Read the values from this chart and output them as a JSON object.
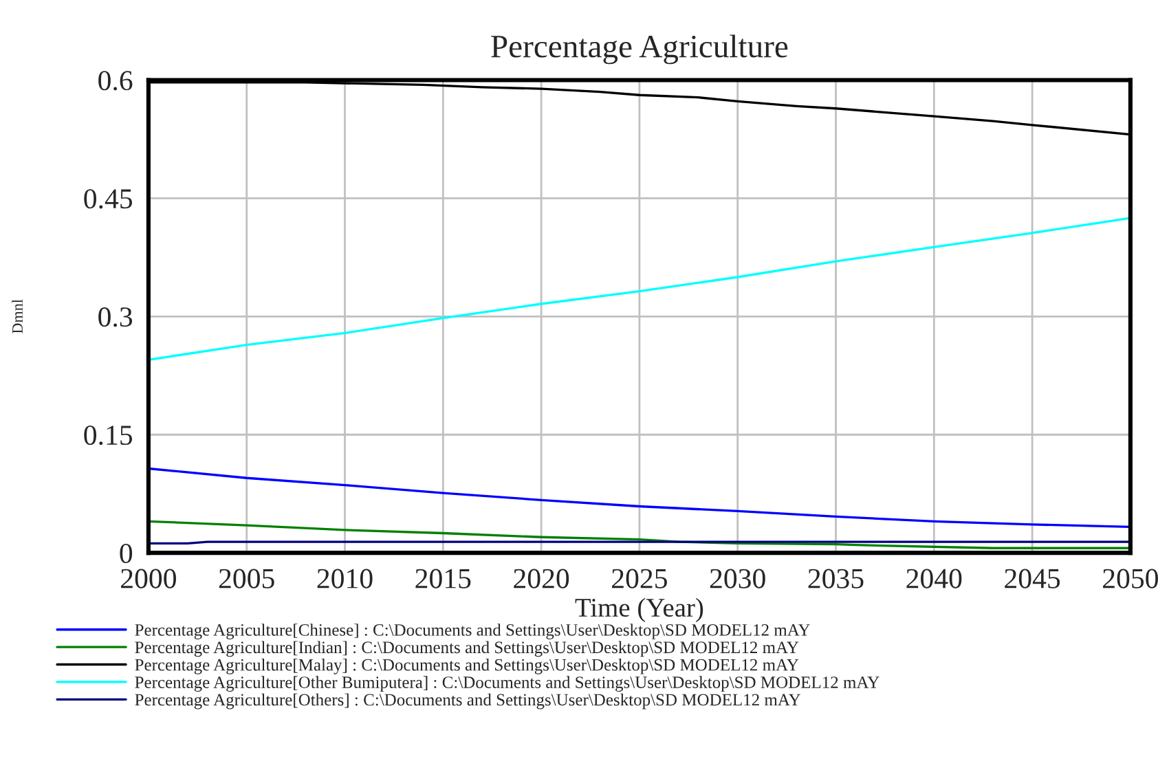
{
  "chart_data": {
    "type": "line",
    "title": "Percentage Agriculture",
    "xlabel": "Time (Year)",
    "ylabel": "Dmnl",
    "xlim": [
      2000,
      2050
    ],
    "xticks": [
      2000,
      2005,
      2010,
      2015,
      2020,
      2025,
      2030,
      2035,
      2040,
      2045,
      2050
    ],
    "ylim": [
      0,
      0.6
    ],
    "yticks": [
      0,
      0.15,
      0.3,
      0.45,
      0.6
    ],
    "grid": true,
    "legend": "bottom",
    "marker": "none",
    "line_style": "solid",
    "series": [
      {
        "name": "Percentage Agriculture[Chinese] : C:\\Documents and Settings\\User\\Desktop\\SD MODEL12 mAY",
        "color": "#0000ff",
        "x": [
          2000,
          2005,
          2010,
          2015,
          2020,
          2025,
          2030,
          2035,
          2040,
          2045,
          2050
        ],
        "values": [
          0.107,
          0.095,
          0.086,
          0.076,
          0.067,
          0.059,
          0.053,
          0.046,
          0.04,
          0.036,
          0.033
        ]
      },
      {
        "name": "Percentage Agriculture[Indian] : C:\\Documents and Settings\\User\\Desktop\\SD MODEL12 mAY",
        "color": "#008000",
        "x": [
          2000,
          2005,
          2010,
          2015,
          2020,
          2025,
          2027,
          2030,
          2035,
          2036,
          2043,
          2050
        ],
        "values": [
          0.04,
          0.035,
          0.029,
          0.025,
          0.02,
          0.017,
          0.014,
          0.012,
          0.011,
          0.01,
          0.006,
          0.006
        ]
      },
      {
        "name": "Percentage Agriculture[Malay] : C:\\Documents and Settings\\User\\Desktop\\SD MODEL12 mAY",
        "color": "#000000",
        "x": [
          2000,
          2008,
          2014,
          2017,
          2020,
          2023,
          2025,
          2028,
          2030,
          2033,
          2035,
          2037,
          2040,
          2043,
          2045,
          2050
        ],
        "values": [
          0.597,
          0.597,
          0.594,
          0.591,
          0.589,
          0.585,
          0.581,
          0.578,
          0.573,
          0.567,
          0.564,
          0.56,
          0.554,
          0.548,
          0.543,
          0.531
        ]
      },
      {
        "name": "Percentage Agriculture[Other Bumiputera] : C:\\Documents and Settings\\User\\Desktop\\SD MODEL12 mAY",
        "color": "#00ffff",
        "x": [
          2000,
          2005,
          2010,
          2015,
          2020,
          2025,
          2030,
          2035,
          2040,
          2045,
          2050
        ],
        "values": [
          0.245,
          0.264,
          0.279,
          0.298,
          0.316,
          0.332,
          0.35,
          0.37,
          0.388,
          0.406,
          0.425
        ]
      },
      {
        "name": "Percentage Agriculture[Others] : C:\\Documents and Settings\\User\\Desktop\\SD MODEL12 mAY",
        "color": "#000080",
        "x": [
          2000,
          2002,
          2003,
          2050
        ],
        "values": [
          0.012,
          0.012,
          0.014,
          0.014
        ]
      }
    ]
  }
}
